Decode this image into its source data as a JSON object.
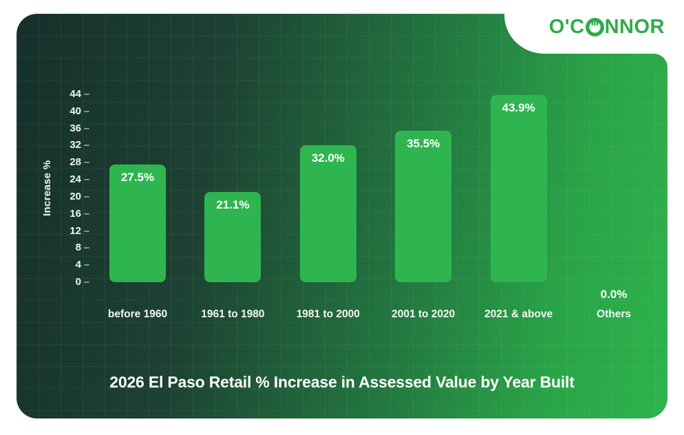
{
  "logo": {
    "text": "O'CONNOR",
    "prefix": "O'C",
    "suffix": "NNOR",
    "color": "#2dac4a"
  },
  "chart_data": {
    "type": "bar",
    "title": "2026 El Paso Retail % Increase in Assessed Value by Year Built",
    "xlabel": "",
    "ylabel": "Increase %",
    "categories": [
      "before 1960",
      "1961 to 1980",
      "1981 to 2000",
      "2001 to 2020",
      "2021 & above",
      "Others"
    ],
    "values": [
      27.5,
      21.1,
      32.0,
      35.5,
      43.9,
      0.0
    ],
    "value_labels": [
      "27.5%",
      "21.1%",
      "32.0%",
      "35.5%",
      "43.9%",
      "0.0%"
    ],
    "y_ticks": [
      0,
      4,
      8,
      12,
      16,
      20,
      24,
      28,
      32,
      36,
      40,
      44
    ],
    "ylim": [
      0,
      44
    ],
    "legend": "none",
    "grid": true,
    "bar_color": "#2fb54f",
    "background_gradient": [
      "#16302b",
      "#2eb44c"
    ],
    "label_color": "#ffffff"
  }
}
